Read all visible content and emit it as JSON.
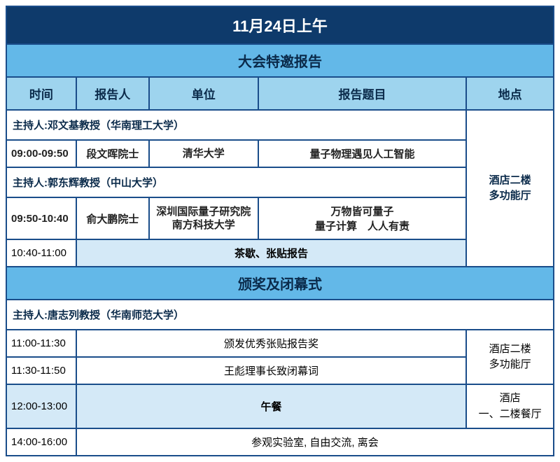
{
  "colors": {
    "border": "#1a4d8a",
    "title_bg": "#0e3a6b",
    "title_fg": "#ffffff",
    "section_bg": "#63b8e8",
    "header_bg": "#9ed4ee",
    "break_bg": "#d4e9f7",
    "text_dark": "#0a2a4a"
  },
  "title": "11月24日上午",
  "section1": "大会特邀报告",
  "headers": {
    "time": "时间",
    "speaker": "报告人",
    "unit": "单位",
    "topic": "报告题目",
    "venue": "地点"
  },
  "host1": "主持人:邓文基教授（华南理工大学）",
  "talk1": {
    "time": "09:00-09:50",
    "speaker": "段文晖院士",
    "unit": "清华大学",
    "topic": "量子物理遇见人工智能"
  },
  "host2": "主持人:郭东辉教授（中山大学）",
  "talk2": {
    "time": "09:50-10:40",
    "speaker": "俞大鹏院士",
    "unit": "深圳国际量子研究院\n南方科技大学",
    "topic": "万物皆可量子\n量子计算　人人有责"
  },
  "break1": {
    "time": "10:40-11:00",
    "label": "茶歇、张贴报告"
  },
  "venue1": "酒店二楼\n多功能厅",
  "section2": "颁奖及闭幕式",
  "host3": "主持人:唐志列教授（华南师范大学）",
  "cer1": {
    "time": "11:00-11:30",
    "label": "颁发优秀张贴报告奖"
  },
  "cer2": {
    "time": "11:30-11:50",
    "label": "王彪理事长致闭幕词"
  },
  "venue2": "酒店二楼\n多功能厅",
  "lunch": {
    "time": "12:00-13:00",
    "label": "午餐",
    "venue": "酒店\n一、二楼餐厅"
  },
  "depart": {
    "time": "14:00-16:00",
    "label": "参观实验室, 自由交流, 离会"
  }
}
